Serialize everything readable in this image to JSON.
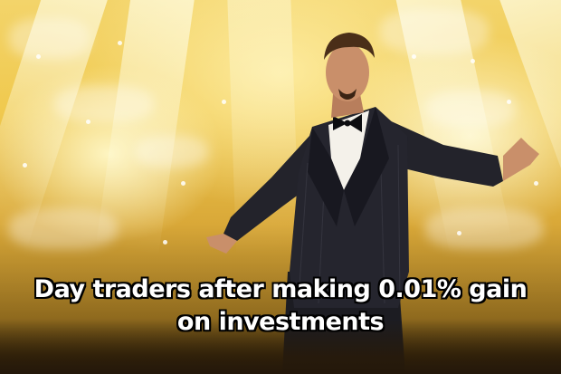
{
  "meme": {
    "caption_lines": [
      "Day traders after making 0.01% gain",
      "on investments"
    ]
  },
  "photo": {
    "subject": "man-in-tuxedo-arms-outstretched",
    "background": "stage-lights-confetti",
    "colors": {
      "light": "#fff5c8",
      "stage": "#f0c94e",
      "suit": "#23232b",
      "shirt": "#f4f1ea",
      "skin": "#c98f6a"
    }
  }
}
